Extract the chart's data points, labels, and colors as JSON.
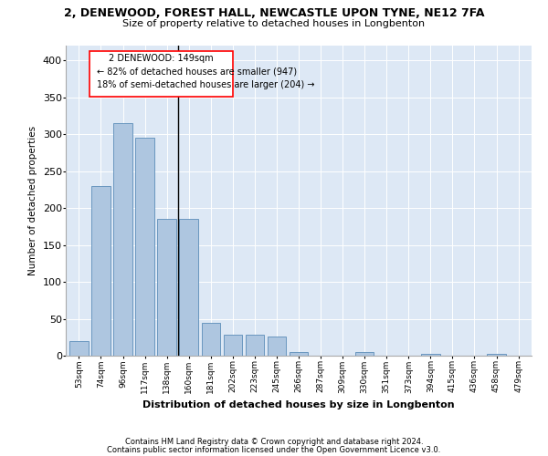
{
  "title": "2, DENEWOOD, FOREST HALL, NEWCASTLE UPON TYNE, NE12 7FA",
  "subtitle": "Size of property relative to detached houses in Longbenton",
  "xlabel": "Distribution of detached houses by size in Longbenton",
  "ylabel": "Number of detached properties",
  "bar_color": "#aec6e0",
  "bar_edge_color": "#5b8db8",
  "background_color": "#dde8f5",
  "grid_color": "#ffffff",
  "categories": [
    "53sqm",
    "74sqm",
    "96sqm",
    "117sqm",
    "138sqm",
    "160sqm",
    "181sqm",
    "202sqm",
    "223sqm",
    "245sqm",
    "266sqm",
    "287sqm",
    "309sqm",
    "330sqm",
    "351sqm",
    "373sqm",
    "394sqm",
    "415sqm",
    "436sqm",
    "458sqm",
    "479sqm"
  ],
  "values": [
    20,
    230,
    315,
    295,
    185,
    185,
    45,
    28,
    28,
    26,
    5,
    0,
    0,
    5,
    0,
    0,
    3,
    0,
    0,
    3,
    0
  ],
  "ylim": [
    0,
    420
  ],
  "yticks": [
    0,
    50,
    100,
    150,
    200,
    250,
    300,
    350,
    400
  ],
  "property_line_x": 4.5,
  "annotation_text_line1": "2 DENEWOOD: 149sqm",
  "annotation_text_line2": "← 82% of detached houses are smaller (947)",
  "annotation_text_line3": "18% of semi-detached houses are larger (204) →",
  "footnote1": "Contains HM Land Registry data © Crown copyright and database right 2024.",
  "footnote2": "Contains public sector information licensed under the Open Government Licence v3.0."
}
